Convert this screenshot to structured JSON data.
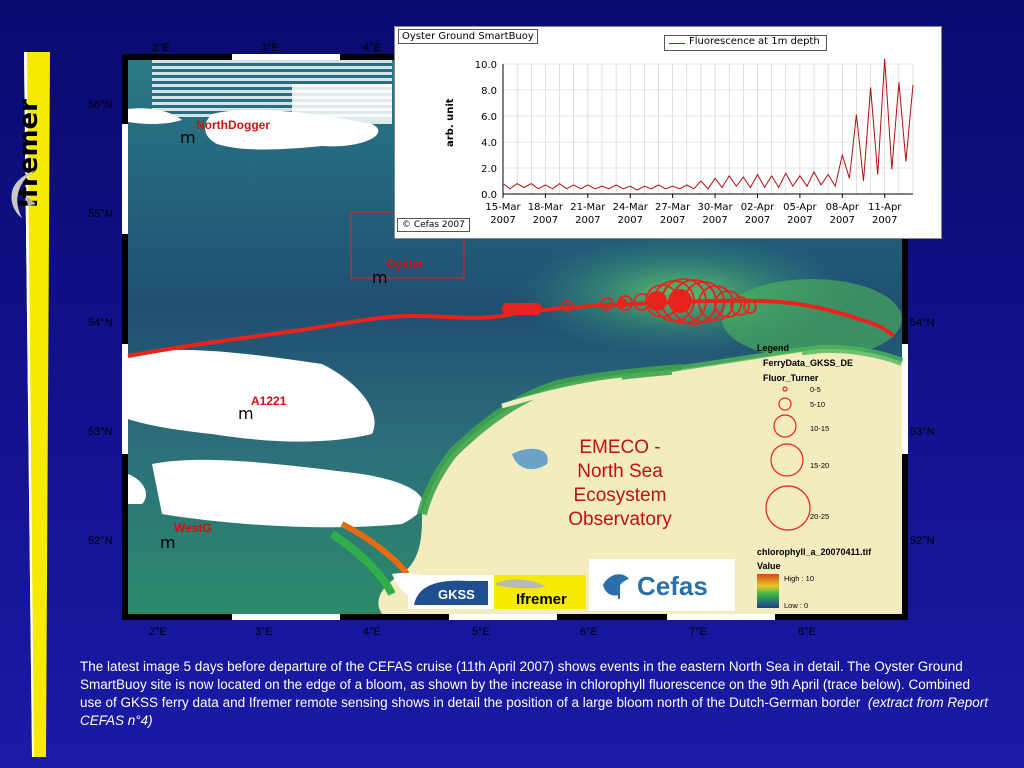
{
  "side_logo": {
    "text": "Ifremer"
  },
  "map": {
    "lon_labels": [
      "2°E",
      "3°E",
      "4°E",
      "5°E",
      "6°E",
      "7°E",
      "8°E"
    ],
    "lat_labels_left": [
      "56°N",
      "55°N",
      "54°N",
      "53°N",
      "52°N"
    ],
    "lat_labels_right": [
      "54°N",
      "53°N",
      "52°N"
    ],
    "sites": [
      {
        "name": "NorthDogger",
        "marker": "m"
      },
      {
        "name": "Oyster",
        "marker": "m"
      },
      {
        "name": "A1221",
        "marker": "m"
      },
      {
        "name": "WestG",
        "marker": "m"
      }
    ],
    "observatory_title": [
      "EMECO -",
      "North Sea",
      "Ecosystem",
      "Observatory"
    ],
    "legend": {
      "title": "Legend",
      "layer": "FerryData_GKSS_DE",
      "field": "Fluor_Turner",
      "classes": [
        "0-5",
        "5-10",
        "10-15",
        "15-20",
        "20-25"
      ],
      "raster": "chlorophyll_a_20070411.tif",
      "raster_value_label": "Value",
      "high": "High : 10",
      "low": "Low : 0"
    },
    "logos": [
      "GKSS FORSCHUNGSZENTRUM",
      "Ifremer",
      "Cefas"
    ],
    "colors": {
      "ferry_track": "#e8231c",
      "land": "#f3ecbf",
      "clouds": "#ffffff"
    }
  },
  "inset_chart": {
    "title": "Oyster Ground SmartBuoy",
    "credit": "© Cefas 2007"
  },
  "chart_data": {
    "type": "line",
    "title": "Oyster Ground SmartBuoy",
    "xlabel": "",
    "ylabel": "arb. unit",
    "ylim": [
      0.0,
      10.0
    ],
    "yticks": [
      "0.0",
      "2.0",
      "4.0",
      "6.0",
      "8.0",
      "10.0"
    ],
    "xticks": [
      "15-Mar\n2007",
      "18-Mar\n2007",
      "21-Mar\n2007",
      "24-Mar\n2007",
      "27-Mar\n2007",
      "30-Mar\n2007",
      "02-Apr\n2007",
      "05-Apr\n2007",
      "08-Apr\n2007",
      "11-Apr\n2007"
    ],
    "xlim_days": [
      0,
      29
    ],
    "grid": true,
    "legend_position": "top-right",
    "series": [
      {
        "name": "Fluorescence at 1m depth",
        "color": "#b01010",
        "x": [
          0,
          0.5,
          1,
          1.5,
          2,
          2.5,
          3,
          3.5,
          4,
          4.5,
          5,
          5.5,
          6,
          6.5,
          7,
          7.5,
          8,
          8.5,
          9,
          9.5,
          10,
          10.5,
          11,
          11.5,
          12,
          12.5,
          13,
          13.5,
          14,
          14.5,
          15,
          15.5,
          16,
          16.5,
          17,
          17.5,
          18,
          18.5,
          19,
          19.5,
          20,
          20.5,
          21,
          21.5,
          22,
          22.5,
          23,
          23.5,
          24,
          24.5,
          25,
          25.5,
          26,
          26.5,
          27,
          27.5,
          28,
          28.5,
          29
        ],
        "y": [
          0.8,
          0.4,
          0.8,
          0.5,
          0.8,
          0.4,
          0.7,
          0.4,
          0.8,
          0.4,
          0.7,
          0.4,
          0.7,
          0.4,
          0.6,
          0.4,
          0.7,
          0.4,
          0.6,
          0.3,
          0.6,
          0.4,
          0.7,
          0.4,
          0.6,
          0.4,
          0.7,
          0.4,
          1.0,
          0.4,
          1.2,
          0.5,
          1.4,
          0.6,
          1.3,
          0.5,
          1.5,
          0.5,
          1.4,
          0.5,
          1.6,
          0.6,
          1.4,
          0.6,
          1.7,
          0.7,
          1.5,
          0.6,
          3.0,
          1.2,
          6.1,
          1.0,
          8.2,
          1.5,
          10.4,
          1.9,
          8.6,
          2.5,
          8.4
        ]
      }
    ]
  },
  "caption": {
    "text": "The latest image 5 days before departure of the CEFAS cruise (11th April 2007) shows events in the eastern North Sea in detail. The Oyster Ground SmartBuoy site is now located on the edge of a bloom, as shown by the increase in chlorophyll fluorescence on the 9th April (trace below). Combined use of GKSS ferry data and Ifremer remote sensing shows in detail the position of a large bloom north of the Dutch-German border",
    "citation": "(extract from Report CEFAS n°4)"
  }
}
